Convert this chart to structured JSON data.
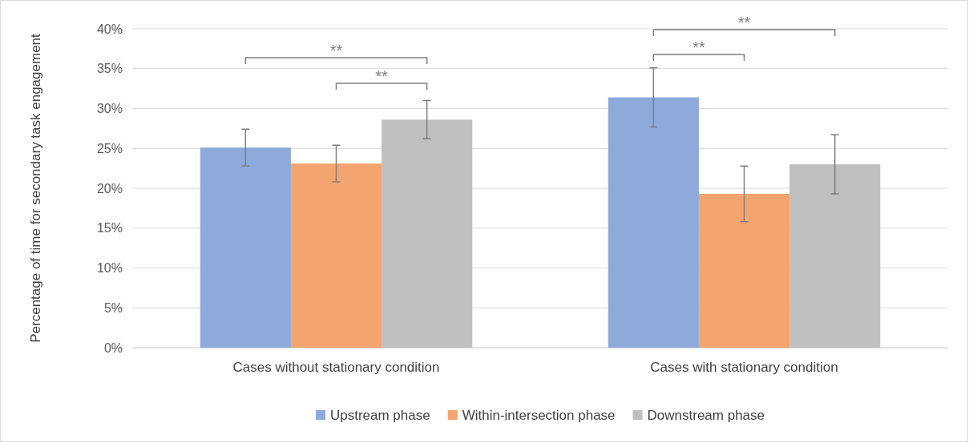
{
  "chart_data": {
    "type": "bar",
    "ylabel": "Percentage of time for secondary task engagement",
    "categories": [
      "Cases without stationary condition",
      "Cases with stationary condition"
    ],
    "series": [
      {
        "name": "Upstream phase",
        "color": "#8eaadb",
        "values": [
          25.1,
          31.4
        ],
        "errors": [
          2.3,
          3.7
        ]
      },
      {
        "name": "Within-intersection phase",
        "color": "#f4a46e",
        "values": [
          23.1,
          19.3
        ],
        "errors": [
          2.3,
          3.5
        ]
      },
      {
        "name": "Downstream phase",
        "color": "#bfbfbf",
        "values": [
          28.6,
          23.0
        ],
        "errors": [
          2.4,
          3.7
        ]
      }
    ],
    "ylim": [
      0,
      40
    ],
    "yticks": [
      {
        "value": 0,
        "label": "0%"
      },
      {
        "value": 5,
        "label": "5%"
      },
      {
        "value": 10,
        "label": "10%"
      },
      {
        "value": 15,
        "label": "15%"
      },
      {
        "value": 20,
        "label": "20%"
      },
      {
        "value": 25,
        "label": "25%"
      },
      {
        "value": 30,
        "label": "30%"
      },
      {
        "value": 35,
        "label": "35%"
      },
      {
        "value": 40,
        "label": "40%"
      }
    ],
    "grid": "y",
    "legend": "bottom",
    "annotations": [
      "**",
      "**",
      "**",
      "**"
    ]
  }
}
